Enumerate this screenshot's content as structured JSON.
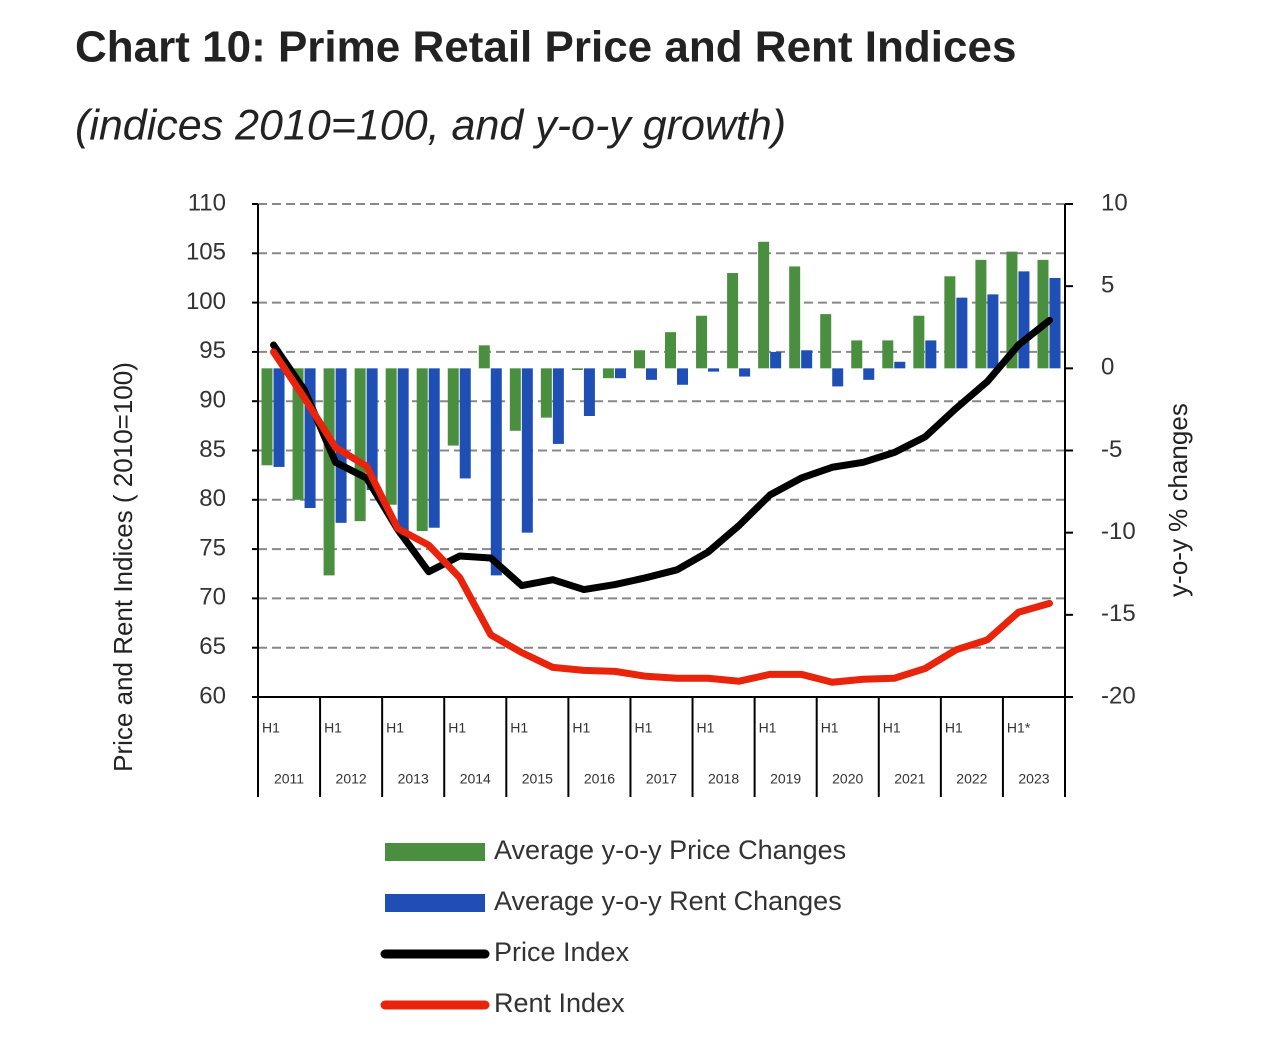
{
  "chart_data": {
    "type": "bar",
    "title": "Chart 10: Prime Retail Price and Rent Indices",
    "subtitle": "(indices 2010=100, and y-o-y growth)",
    "y_label": "Price and Rent Indices ( 2010=100)",
    "y2_label": "y-o-y % changes",
    "categories": [
      "H1",
      null,
      "H1",
      null,
      "H1",
      null,
      "H1",
      null,
      "H1",
      null,
      "H1",
      null,
      "H1",
      null,
      "H1",
      null,
      "H1",
      null,
      "H1",
      null,
      "H1",
      null,
      "H1",
      null,
      "H1*",
      null
    ],
    "category_groups": [
      "2011",
      "2012",
      "2013",
      "2014",
      "2015",
      "2016",
      "2017",
      "2018",
      "2019",
      "2020",
      "2021",
      "2022",
      "2023"
    ],
    "ylim": [
      60,
      110
    ],
    "yticks": [
      60,
      65,
      70,
      75,
      80,
      85,
      90,
      95,
      100,
      105,
      110
    ],
    "y2lim": [
      -20,
      10
    ],
    "y2ticks": [
      -20,
      -15,
      -10,
      -5,
      0,
      5,
      10
    ],
    "grid": true,
    "series": [
      {
        "name": "Average y-o-y Price Changes",
        "type": "bar",
        "axis": "y2",
        "color": "#4a8f3f",
        "values": [
          -5.9,
          -8.0,
          -12.6,
          -9.3,
          -8.3,
          -9.9,
          -4.7,
          1.4,
          -3.8,
          -3.0,
          -0.1,
          -0.6,
          1.1,
          2.2,
          3.2,
          5.8,
          7.7,
          6.2,
          3.3,
          1.7,
          1.7,
          3.2,
          5.6,
          6.6,
          7.1,
          6.6
        ]
      },
      {
        "name": "Average y-o-y Rent Changes",
        "type": "bar",
        "axis": "y2",
        "color": "#1f4fb5",
        "values": [
          -6.0,
          -8.5,
          -9.4,
          -7.4,
          -10.2,
          -9.7,
          -6.7,
          -12.6,
          -10.0,
          -4.6,
          -2.9,
          -0.6,
          -0.7,
          -1.0,
          -0.2,
          -0.5,
          1.0,
          1.1,
          -1.1,
          -0.7,
          0.4,
          1.7,
          4.3,
          4.5,
          5.9,
          5.5
        ]
      },
      {
        "name": "Price Index",
        "type": "line",
        "axis": "y",
        "color": "#000000",
        "values": [
          95.7,
          91.1,
          83.8,
          82.2,
          77.0,
          72.7,
          74.3,
          74.1,
          71.3,
          71.9,
          70.9,
          71.4,
          72.1,
          72.9,
          74.7,
          77.4,
          80.5,
          82.2,
          83.3,
          83.8,
          84.8,
          86.4,
          89.3,
          92.0,
          95.7,
          98.2
        ]
      },
      {
        "name": "Rent Index",
        "type": "line",
        "axis": "y",
        "color": "#e8240c",
        "values": [
          95.0,
          90.3,
          85.3,
          83.4,
          77.1,
          75.4,
          72.1,
          66.3,
          64.5,
          63.0,
          62.7,
          62.6,
          62.1,
          61.9,
          61.9,
          61.6,
          62.3,
          62.3,
          61.5,
          61.8,
          61.9,
          62.9,
          64.8,
          65.8,
          68.6,
          69.5
        ]
      }
    ]
  }
}
